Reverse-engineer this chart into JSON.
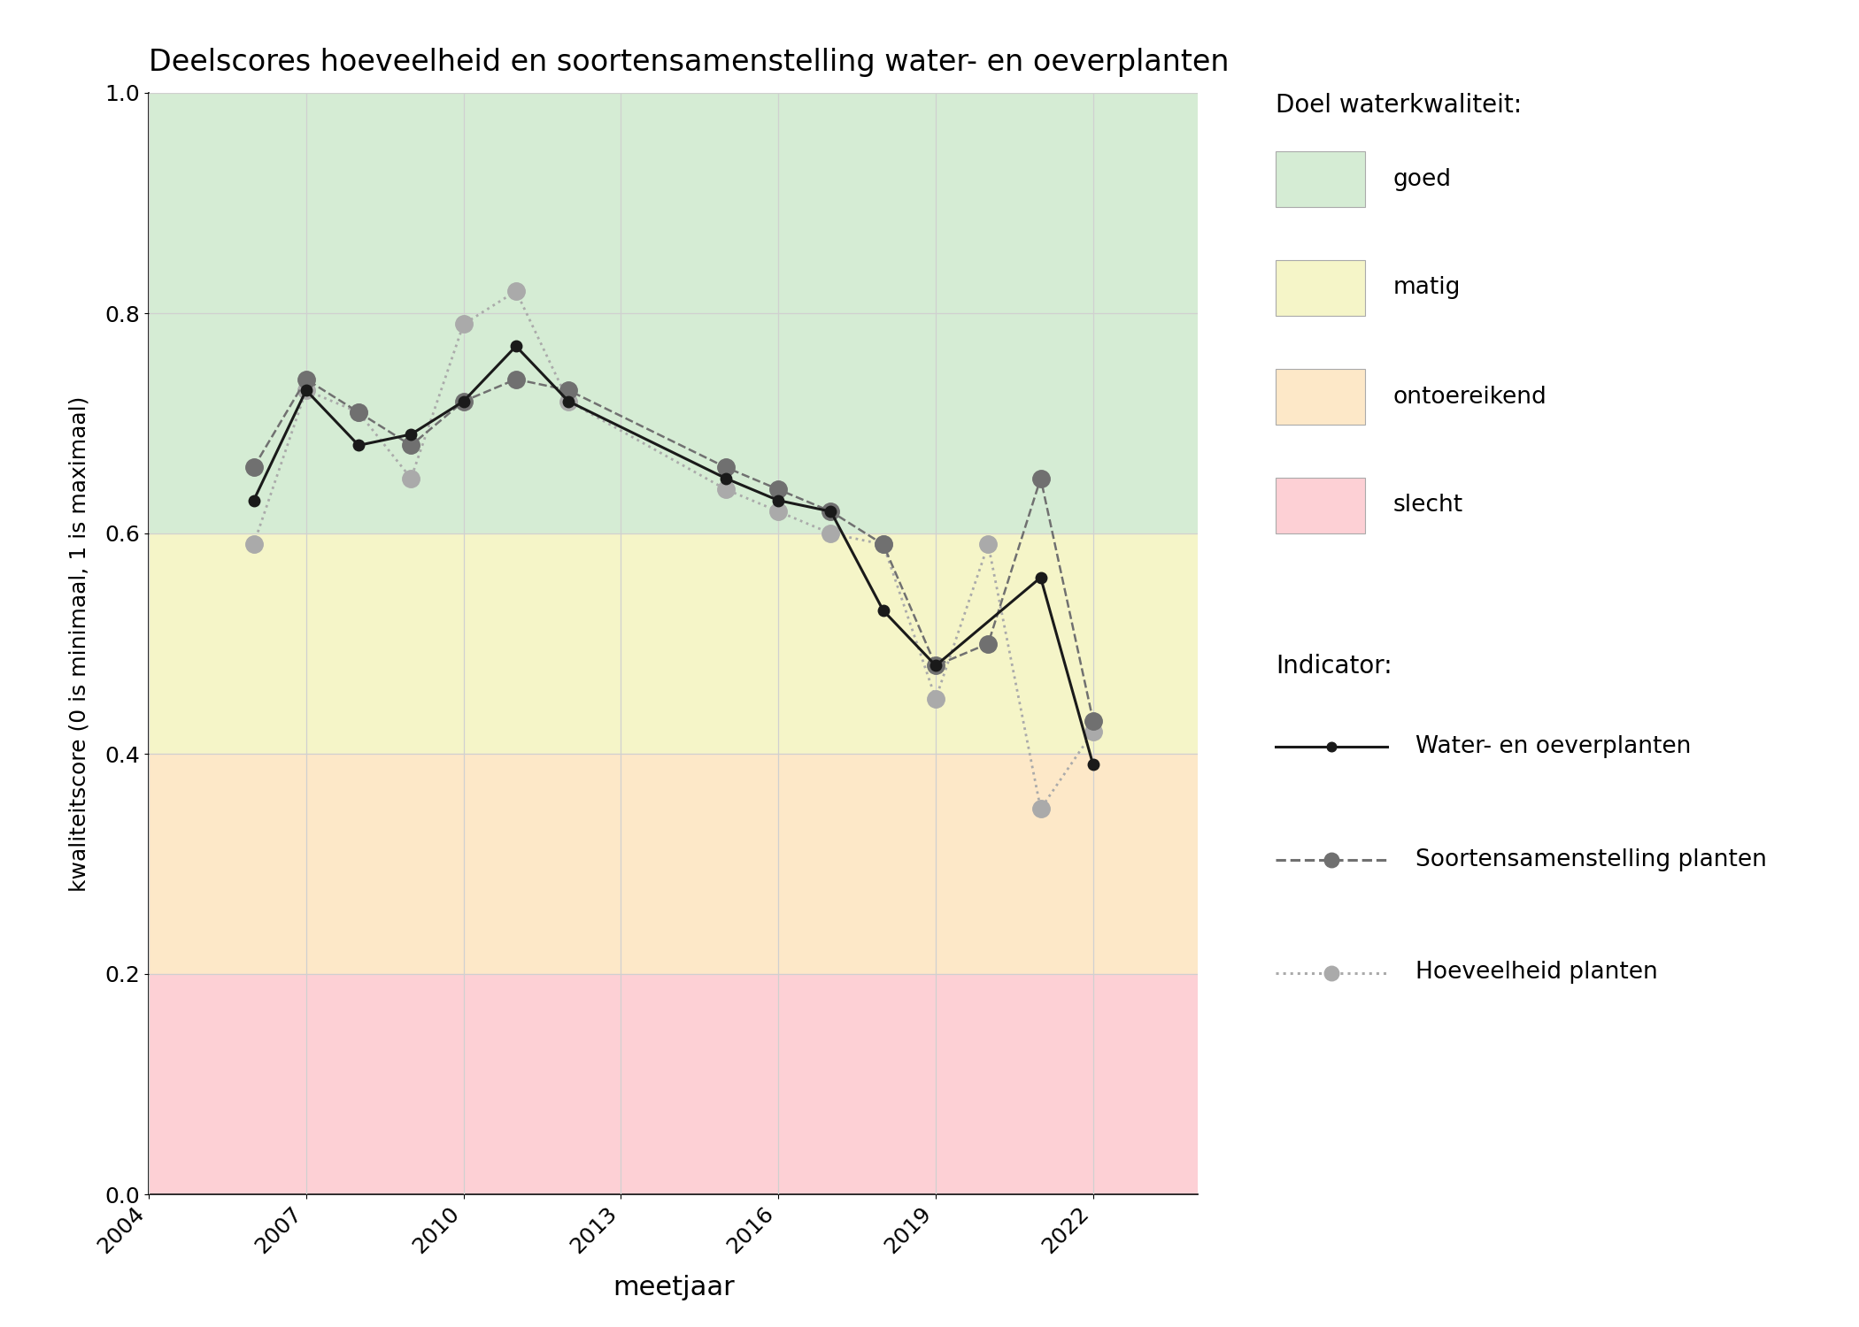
{
  "title": "Deelscores hoeveelheid en soortensamenstelling water- en oeverplanten",
  "xlabel": "meetjaar",
  "ylabel": "kwaliteitscore (0 is minimaal, 1 is maximaal)",
  "xlim": [
    2004,
    2024
  ],
  "ylim": [
    0.0,
    1.0
  ],
  "xticks": [
    2004,
    2007,
    2010,
    2013,
    2016,
    2019,
    2022
  ],
  "yticks": [
    0.0,
    0.2,
    0.4,
    0.6,
    0.8,
    1.0
  ],
  "bg_colors": [
    {
      "color": "#d5ecd4",
      "ymin": 0.6,
      "ymax": 1.0,
      "label": "goed"
    },
    {
      "color": "#f5f5c8",
      "ymin": 0.4,
      "ymax": 0.6,
      "label": "matig"
    },
    {
      "color": "#fde8c8",
      "ymin": 0.2,
      "ymax": 0.4,
      "label": "ontoereikend"
    },
    {
      "color": "#fdd0d5",
      "ymin": 0.0,
      "ymax": 0.2,
      "label": "slecht"
    }
  ],
  "line_water": {
    "years": [
      2006,
      2007,
      2008,
      2009,
      2010,
      2011,
      2012,
      2015,
      2016,
      2017,
      2018,
      2019,
      2021,
      2022
    ],
    "values": [
      0.63,
      0.73,
      0.68,
      0.69,
      0.72,
      0.77,
      0.72,
      0.65,
      0.63,
      0.62,
      0.53,
      0.48,
      0.56,
      0.39
    ],
    "color": "#1a1a1a",
    "linestyle": "-",
    "linewidth": 2.2,
    "markersize": 9,
    "marker": "o",
    "label": "Water- en oeverplanten"
  },
  "line_soort": {
    "years": [
      2006,
      2007,
      2008,
      2009,
      2010,
      2011,
      2012,
      2015,
      2016,
      2017,
      2018,
      2019,
      2020,
      2021,
      2022
    ],
    "values": [
      0.66,
      0.74,
      0.71,
      0.68,
      0.72,
      0.74,
      0.73,
      0.66,
      0.64,
      0.62,
      0.59,
      0.48,
      0.5,
      0.65,
      0.43
    ],
    "color": "#707070",
    "linestyle": "--",
    "linewidth": 1.8,
    "markersize": 14,
    "marker": "o",
    "label": "Soortensamenstelling planten"
  },
  "line_hoeveelheid": {
    "years": [
      2006,
      2007,
      2008,
      2009,
      2010,
      2011,
      2012,
      2015,
      2016,
      2017,
      2018,
      2019,
      2020,
      2021,
      2022
    ],
    "values": [
      0.59,
      0.73,
      0.71,
      0.65,
      0.79,
      0.82,
      0.72,
      0.64,
      0.62,
      0.6,
      0.59,
      0.45,
      0.59,
      0.35,
      0.42
    ],
    "color": "#aaaaaa",
    "linestyle": ":",
    "linewidth": 2.0,
    "markersize": 14,
    "marker": "o",
    "label": "Hoeveelheid planten"
  },
  "legend_doel_title": "Doel waterkwaliteit:",
  "legend_indicator_title": "Indicator:",
  "background_color": "#ffffff",
  "grid_color": "#d0d0d0"
}
